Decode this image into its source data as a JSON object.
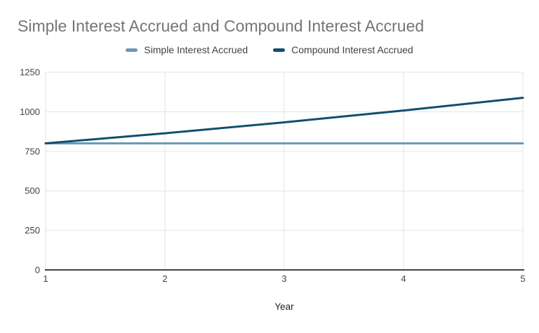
{
  "title": "Simple Interest Accrued and Compound Interest Accrued",
  "legend": {
    "position": "top",
    "items": [
      {
        "label": "Simple Interest Accrued",
        "color": "#699ab8"
      },
      {
        "label": "Compound Interest Accrued",
        "color": "#124f6c"
      }
    ]
  },
  "colors": {
    "background": "#ffffff",
    "title_text": "#757575",
    "grid": "#e3e3e3",
    "axis": "#424242",
    "tick_text": "#424242",
    "series_simple": "#699ab8",
    "series_compound": "#124f6c"
  },
  "chart_data": {
    "type": "line",
    "title": "Simple Interest Accrued and Compound Interest Accrued",
    "xlabel": "Year",
    "ylabel": "",
    "x": [
      1,
      2,
      3,
      4,
      5
    ],
    "series": [
      {
        "name": "Simple Interest Accrued",
        "color": "#699ab8",
        "values": [
          800,
          800,
          800,
          800,
          800
        ]
      },
      {
        "name": "Compound Interest Accrued",
        "color": "#124f6c",
        "values": [
          800,
          864,
          933,
          1008,
          1088
        ]
      }
    ],
    "xlim": [
      1,
      5
    ],
    "ylim": [
      0,
      1250
    ],
    "x_ticks": [
      1,
      2,
      3,
      4,
      5
    ],
    "y_ticks": [
      0,
      250,
      500,
      750,
      1000,
      1250
    ],
    "grid": true,
    "legend_position": "top"
  }
}
